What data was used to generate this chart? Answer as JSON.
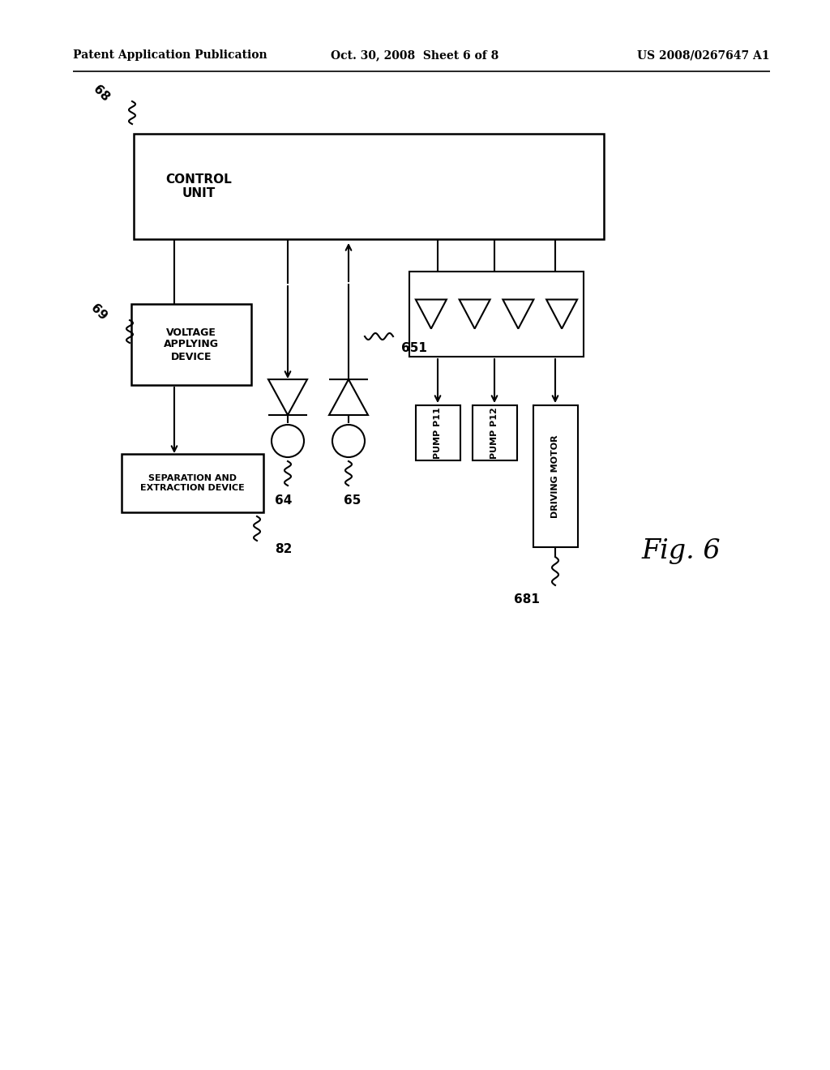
{
  "bg_color": "#ffffff",
  "header_left": "Patent Application Publication",
  "header_mid": "Oct. 30, 2008  Sheet 6 of 8",
  "header_right": "US 2008/0267647 A1",
  "fig_label": "Fig. 6",
  "control_unit_label": "CONTROL\nUNIT",
  "control_unit_ref": "68",
  "voltage_device_label": "VOLTAGE\nAPPLYING\nDEVICE",
  "voltage_device_ref": "69",
  "sep_device_label": "SEPARATION AND\nEXTRACTION DEVICE",
  "sep_device_ref": "82",
  "pump_p11_label": "PUMP P11",
  "pump_p12_label": "PUMP P12",
  "driving_motor_label": "DRIVING MOTOR",
  "driving_motor_ref": "681",
  "ref_64": "64",
  "ref_65": "65",
  "ref_651": "651"
}
